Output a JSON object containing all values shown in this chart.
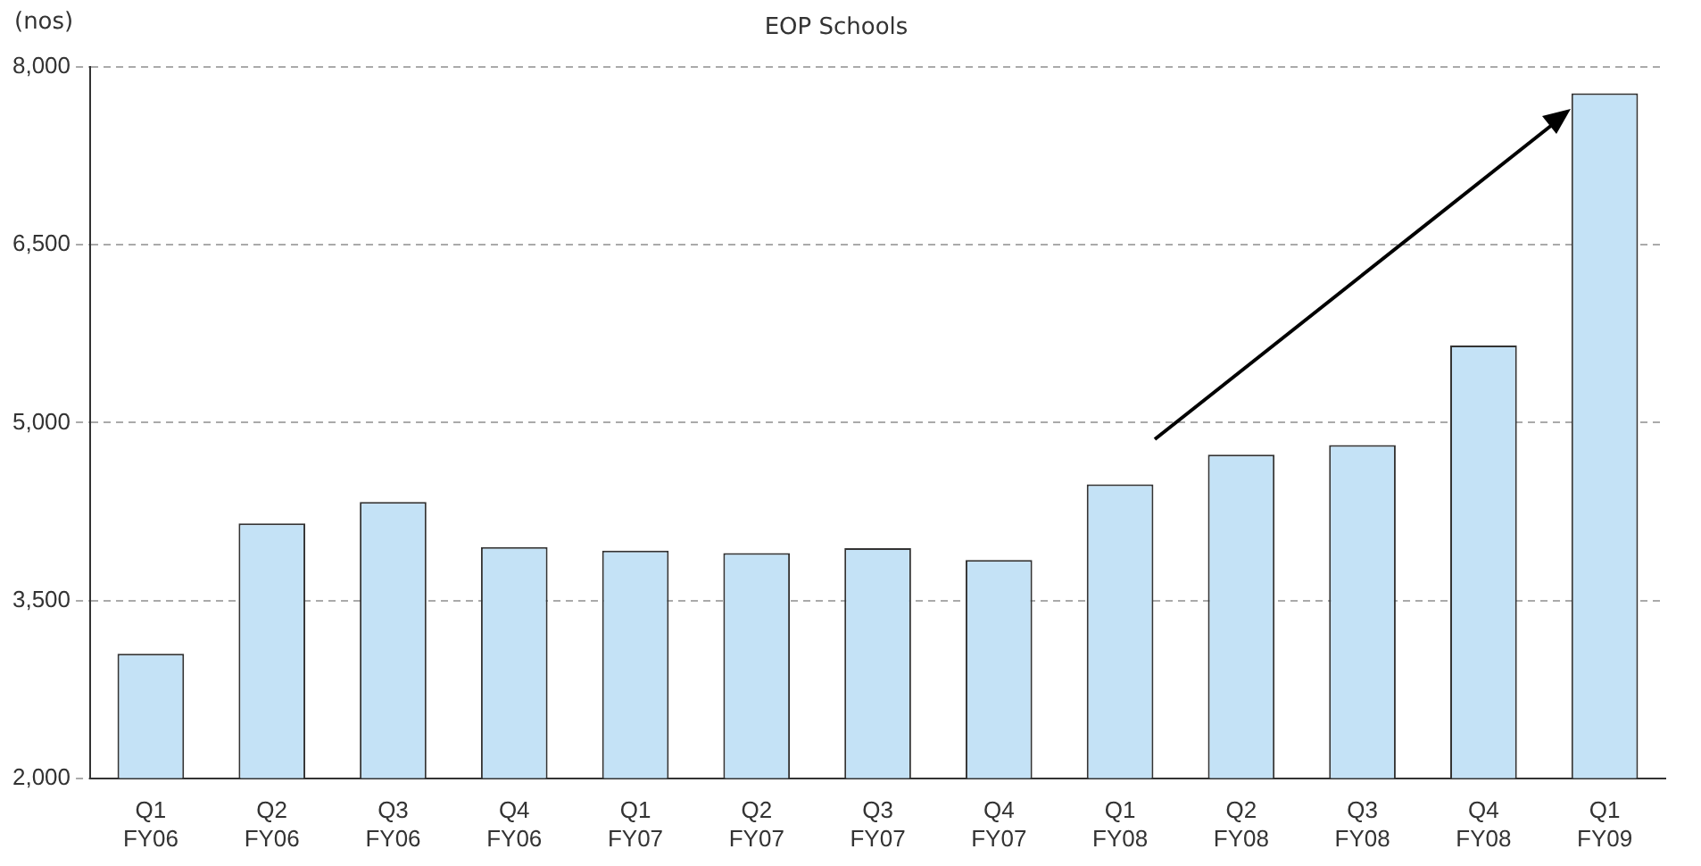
{
  "chart_data": {
    "type": "bar",
    "title": "EOP Schools",
    "ylabel": "(nos)",
    "categories": [
      "Q1 FY06",
      "Q2 FY06",
      "Q3 FY06",
      "Q4 FY06",
      "Q1 FY07",
      "Q2 FY07",
      "Q3 FY07",
      "Q4 FY07",
      "Q1 FY08",
      "Q2 FY08",
      "Q3 FY08",
      "Q4 FY08",
      "Q1 FY09"
    ],
    "values": [
      3050,
      4150,
      4330,
      3950,
      3920,
      3900,
      3940,
      3840,
      4480,
      4730,
      4810,
      5650,
      7780
    ],
    "color": "#c4e2f6",
    "ylim": [
      2000,
      8000
    ],
    "yticks": [
      {
        "value": 2000,
        "label": "2,000"
      },
      {
        "value": 3500,
        "label": "3,500"
      },
      {
        "value": 5000,
        "label": "5,000"
      },
      {
        "value": 6500,
        "label": "6,500"
      },
      {
        "value": 8000,
        "label": "8,000"
      }
    ],
    "grid": "y",
    "legend": false
  }
}
